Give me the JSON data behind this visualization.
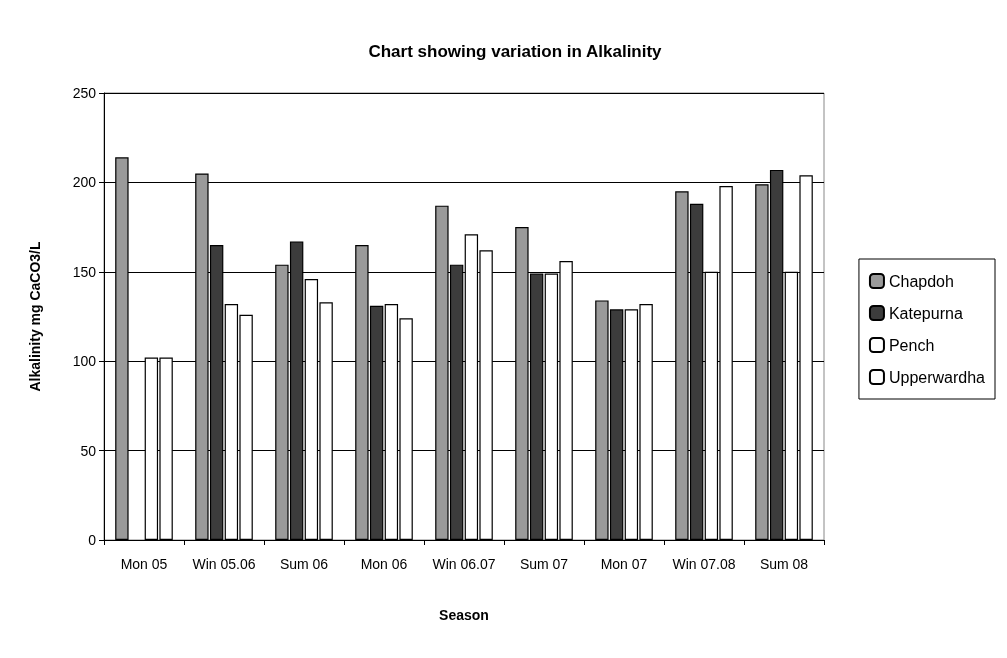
{
  "chart_data": {
    "type": "bar",
    "title": "Chart showing variation in Alkalinity",
    "xlabel": "Season",
    "ylabel": "Alkalinity mg CaCO3/L",
    "categories": [
      "Mon 05",
      "Win 05.06",
      "Sum 06",
      "Mon 06",
      "Win 06.07",
      "Sum 07",
      "Mon 07",
      "Win 07.08",
      "Sum 08"
    ],
    "series": [
      {
        "name": "Chapdoh",
        "color": "#9a9a9a",
        "values": [
          214,
          205,
          154,
          165,
          187,
          175,
          134,
          195,
          199
        ]
      },
      {
        "name": "Katepurna",
        "color": "#3c3c3c",
        "values": [
          null,
          165,
          167,
          131,
          154,
          149,
          129,
          188,
          207
        ]
      },
      {
        "name": "Pench",
        "color": "#ffffff",
        "values": [
          102,
          132,
          146,
          132,
          171,
          149,
          129,
          150,
          150
        ]
      },
      {
        "name": "Upperwardha",
        "color": "#ffffff",
        "values": [
          102,
          126,
          133,
          124,
          162,
          156,
          132,
          198,
          204
        ]
      }
    ],
    "ylim": [
      0,
      250
    ],
    "yticks": [
      0,
      50,
      100,
      150,
      200,
      250
    ],
    "grid": "y",
    "legend": "right"
  }
}
